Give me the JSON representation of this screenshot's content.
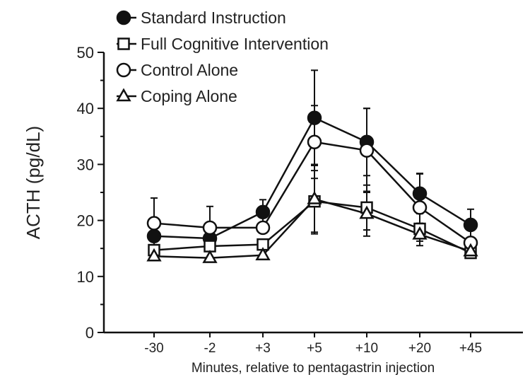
{
  "chart_data": {
    "type": "line",
    "title": "",
    "xlabel": "Minutes, relative to pentagastrin injection",
    "ylabel": "ACTH (pg/dL)",
    "categories": [
      "-30",
      "-2",
      "+3",
      "+5",
      "+10",
      "+20",
      "+45"
    ],
    "ylim": [
      0,
      50
    ],
    "yticks": [
      0,
      10,
      20,
      30,
      40,
      50
    ],
    "grid": false,
    "legend_position": "top-left",
    "series": [
      {
        "name": "Standard Instruction",
        "marker": "filled-circle",
        "values": [
          17.2,
          16.8,
          21.5,
          38.3,
          34.0,
          24.8,
          19.2
        ],
        "error": [
          null,
          null,
          2.2,
          8.5,
          6.0,
          3.6,
          2.8
        ]
      },
      {
        "name": "Full Cognitive Intervention",
        "marker": "open-square",
        "values": [
          14.7,
          15.4,
          15.7,
          23.4,
          22.3,
          18.5,
          14.2
        ],
        "error": [
          null,
          null,
          null,
          5.5,
          4.0,
          null,
          null
        ]
      },
      {
        "name": "Control Alone",
        "marker": "open-circle",
        "values": [
          19.5,
          18.7,
          18.7,
          34.0,
          32.5,
          22.3,
          16.0
        ],
        "error": [
          4.5,
          3.8,
          null,
          6.5,
          7.5,
          6.0,
          null
        ]
      },
      {
        "name": "Coping Alone",
        "marker": "open-triangle",
        "values": [
          13.6,
          13.3,
          13.8,
          23.8,
          21.2,
          17.5,
          14.5
        ],
        "error": [
          null,
          null,
          null,
          6.2,
          4.0,
          2.0,
          null
        ]
      }
    ]
  }
}
